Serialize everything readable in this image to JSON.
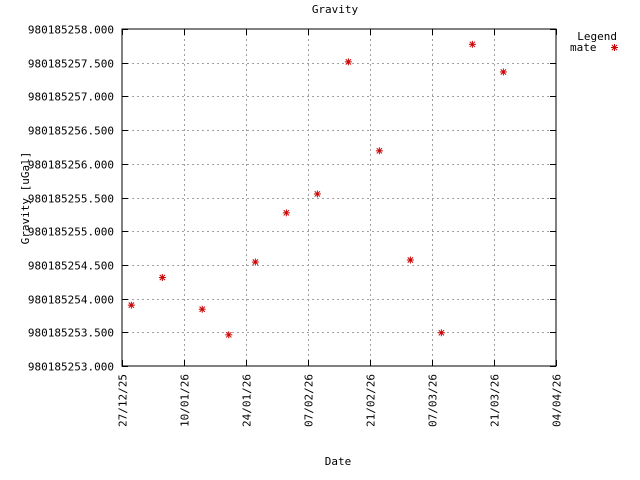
{
  "chart_data": {
    "type": "scatter",
    "title": "Gravity",
    "xlabel": "Date",
    "ylabel": "Gravity [uGal]",
    "legend": {
      "title": "Legend",
      "placement": "top-right"
    },
    "grid": true,
    "ylim": [
      980185253.0,
      980185258.0
    ],
    "xlim": [
      "2025-12-27",
      "2026-04-04"
    ],
    "y_ticks": [
      "980185253.000",
      "980185253.500",
      "980185254.000",
      "980185254.500",
      "980185255.000",
      "980185255.500",
      "980185256.000",
      "980185256.500",
      "980185257.000",
      "980185257.500",
      "980185258.000"
    ],
    "x_ticks": [
      {
        "date": "2025-12-27",
        "label": "27/12/25"
      },
      {
        "date": "2026-01-10",
        "label": "10/01/26"
      },
      {
        "date": "2026-01-24",
        "label": "24/01/26"
      },
      {
        "date": "2026-02-07",
        "label": "07/02/26"
      },
      {
        "date": "2026-02-21",
        "label": "21/02/26"
      },
      {
        "date": "2026-03-07",
        "label": "07/03/26"
      },
      {
        "date": "2026-03-21",
        "label": "21/03/26"
      },
      {
        "date": "2026-04-04",
        "label": "04/04/26"
      }
    ],
    "series": [
      {
        "name": "mate",
        "color": "#cc0000",
        "marker": "asterisk",
        "points": [
          {
            "x": "2025-12-29",
            "y": 980185253.91
          },
          {
            "x": "2026-01-05",
            "y": 980185254.32
          },
          {
            "x": "2026-01-14",
            "y": 980185253.85
          },
          {
            "x": "2026-01-20",
            "y": 980185253.47
          },
          {
            "x": "2026-01-26",
            "y": 980185254.55
          },
          {
            "x": "2026-02-02",
            "y": 980185255.28
          },
          {
            "x": "2026-02-09",
            "y": 980185255.56
          },
          {
            "x": "2026-02-16",
            "y": 980185257.52
          },
          {
            "x": "2026-02-23",
            "y": 980185256.2
          },
          {
            "x": "2026-03-02",
            "y": 980185254.58
          },
          {
            "x": "2026-03-09",
            "y": 980185253.5
          },
          {
            "x": "2026-03-16",
            "y": 980185257.78
          },
          {
            "x": "2026-03-23",
            "y": 980185257.37
          }
        ]
      }
    ]
  }
}
